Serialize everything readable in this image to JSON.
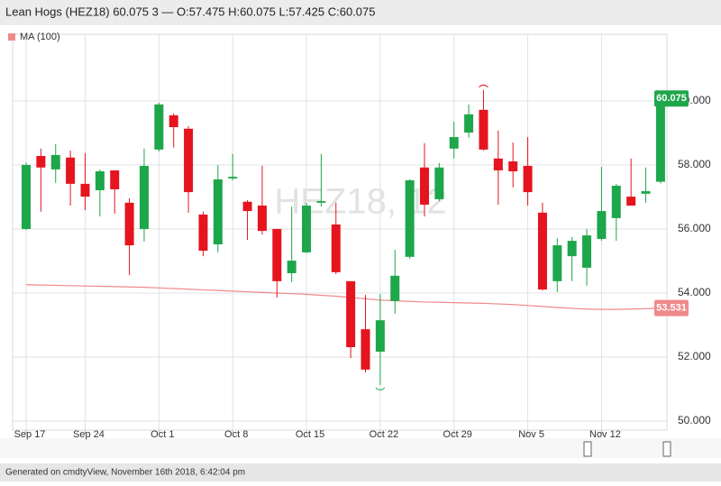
{
  "chart_data": {
    "type": "candlestick",
    "title": "Lean Hogs (HEZ18) 60.075 3 — O:57.475 H:60.075 L:57.425 C:60.075",
    "watermark": "HEZ18, 12",
    "footer": "Generated on cmdtyView, November 16th 2018, 6:42:04 pm",
    "categories": [
      "Sep 17",
      null,
      null,
      null,
      "Sep 24",
      null,
      null,
      null,
      null,
      "Oct 1",
      null,
      null,
      null,
      null,
      "Oct 8",
      null,
      null,
      null,
      null,
      "Oct 15",
      null,
      null,
      null,
      null,
      "Oct 22",
      null,
      null,
      null,
      null,
      "Oct 29",
      null,
      null,
      null,
      null,
      "Nov 5",
      null,
      null,
      null,
      null,
      "Nov 12",
      null,
      null,
      null,
      null
    ],
    "open": [
      56.0,
      58.28,
      57.86,
      58.23,
      57.41,
      57.21,
      57.83,
      56.82,
      56.0,
      58.48,
      59.55,
      59.13,
      56.45,
      55.52,
      57.58,
      56.85,
      56.73,
      56.0,
      54.62,
      55.27,
      56.82,
      56.14,
      54.37,
      52.87,
      52.17,
      53.75,
      55.13,
      57.92,
      56.93,
      58.51,
      59.01,
      59.72,
      58.2,
      58.11,
      57.97,
      56.51,
      54.37,
      55.15,
      54.79,
      55.69,
      56.34,
      57.01,
      57.1,
      57.475
    ],
    "high": [
      58.08,
      58.51,
      58.65,
      58.45,
      58.37,
      57.86,
      57.83,
      56.96,
      58.51,
      59.94,
      59.61,
      59.21,
      56.54,
      58.0,
      58.34,
      56.9,
      57.97,
      56.0,
      56.7,
      56.82,
      58.34,
      56.82,
      54.37,
      53.94,
      53.97,
      55.35,
      57.55,
      58.68,
      58.06,
      59.35,
      59.89,
      60.34,
      59.07,
      58.7,
      58.87,
      56.82,
      55.72,
      55.75,
      56.0,
      57.94,
      57.41,
      58.2,
      57.92,
      60.075
    ],
    "low": [
      55.97,
      56.54,
      57.44,
      56.73,
      56.59,
      56.39,
      56.48,
      54.56,
      55.61,
      58.42,
      58.54,
      56.51,
      55.15,
      55.27,
      57.52,
      55.66,
      55.83,
      53.86,
      54.34,
      55.24,
      56.7,
      54.59,
      51.97,
      51.52,
      51.13,
      53.35,
      55.07,
      56.39,
      56.87,
      58.2,
      58.85,
      58.45,
      56.76,
      57.3,
      56.73,
      54.08,
      54.03,
      54.37,
      54.23,
      55.63,
      55.63,
      56.73,
      56.82,
      57.425
    ],
    "close": [
      58.0,
      57.92,
      58.31,
      57.41,
      57.01,
      57.8,
      57.24,
      55.49,
      57.97,
      59.89,
      59.18,
      57.15,
      55.32,
      57.55,
      57.63,
      56.56,
      55.94,
      54.37,
      55.01,
      56.73,
      56.87,
      54.65,
      52.31,
      51.61,
      53.15,
      54.54,
      57.52,
      56.76,
      57.92,
      58.87,
      59.58,
      58.48,
      57.83,
      57.8,
      57.15,
      54.11,
      55.49,
      55.63,
      55.8,
      56.56,
      57.35,
      56.73,
      57.18,
      60.075
    ],
    "up_color": "#1ea64b",
    "down_color": "#e5141e",
    "ma": {
      "name": "MA (100)",
      "color": "#f08a8a",
      "values": [
        54.26,
        54.25,
        54.24,
        54.23,
        54.22,
        54.21,
        54.2,
        54.19,
        54.18,
        54.16,
        54.14,
        54.12,
        54.1,
        54.08,
        54.06,
        54.04,
        54.02,
        54.0,
        53.98,
        53.96,
        53.93,
        53.9,
        53.86,
        53.82,
        53.78,
        53.76,
        53.74,
        53.72,
        53.71,
        53.7,
        53.69,
        53.68,
        53.66,
        53.64,
        53.61,
        53.58,
        53.55,
        53.52,
        53.5,
        53.49,
        53.49,
        53.5,
        53.51,
        53.531
      ]
    },
    "ylim": [
      49.72,
      62.08
    ],
    "yticks": [
      {
        "value": 50,
        "label": "50.000"
      },
      {
        "value": 52,
        "label": "52.000"
      },
      {
        "value": 54,
        "label": "54.000"
      },
      {
        "value": 56,
        "label": "56.000"
      },
      {
        "value": 58,
        "label": "58.000"
      },
      {
        "value": 60,
        "label": "60.000"
      }
    ],
    "grid": true
  }
}
